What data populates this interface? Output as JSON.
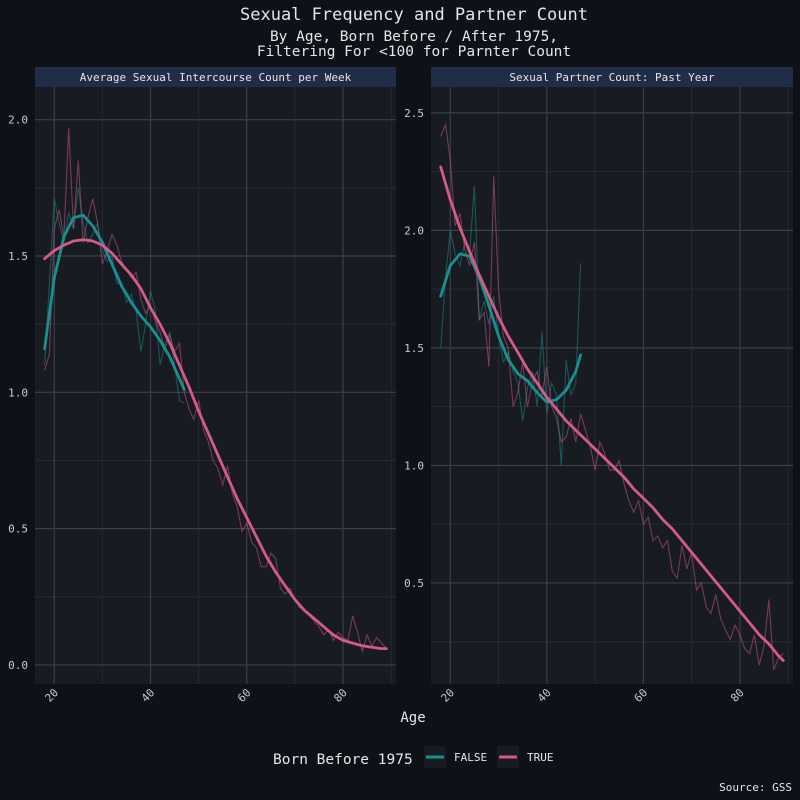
{
  "title": "Sexual Frequency and Partner Count",
  "subtitle_line1": "By Age, Born Before / After 1975,",
  "subtitle_line2": "Filtering For <100 for Parnter Count",
  "xlabel": "Age",
  "source": "Source: GSS",
  "legend": {
    "title": "Born Before 1975",
    "items": [
      "FALSE",
      "TRUE"
    ]
  },
  "colors": {
    "background": "#0e1117",
    "panel": "#181c22",
    "strip": "#1f2d47",
    "grid_major": "#3a3f47",
    "grid_minor": "#252a31",
    "text": "#e6e6e6",
    "axis_text": "#c9c9c9",
    "FALSE": "#1a8f8f",
    "TRUE": "#d45a8a"
  },
  "chart_data": [
    {
      "type": "line",
      "facet": "Average Sexual Intercourse Count per Week",
      "xlim": [
        16,
        91
      ],
      "ylim": [
        -0.07,
        2.12
      ],
      "xticks": [
        20,
        40,
        60,
        80
      ],
      "yticks": [
        0.0,
        0.5,
        1.0,
        1.5,
        2.0
      ],
      "ytick_labels": [
        "0.0",
        "0.5",
        "1.0",
        "1.5",
        "2.0"
      ],
      "raw": [
        {
          "name": "FALSE",
          "x": [
            18,
            19,
            20,
            21,
            22,
            23,
            24,
            25,
            26,
            27,
            28,
            29,
            30,
            31,
            32,
            33,
            34,
            35,
            36,
            37,
            38,
            39,
            40,
            41,
            42,
            43,
            44,
            45,
            46,
            47
          ],
          "y": [
            1.1,
            1.4,
            1.71,
            1.62,
            1.55,
            1.66,
            1.6,
            1.75,
            1.62,
            1.55,
            1.58,
            1.62,
            1.52,
            1.48,
            1.5,
            1.4,
            1.4,
            1.33,
            1.36,
            1.3,
            1.15,
            1.25,
            1.37,
            1.3,
            1.1,
            1.18,
            1.22,
            1.1,
            0.97,
            0.96
          ]
        },
        {
          "name": "TRUE",
          "x": [
            18,
            19,
            20,
            21,
            22,
            23,
            24,
            25,
            26,
            27,
            28,
            29,
            30,
            31,
            32,
            33,
            34,
            35,
            36,
            37,
            38,
            39,
            40,
            41,
            42,
            43,
            44,
            45,
            46,
            47,
            48,
            49,
            50,
            51,
            52,
            53,
            54,
            55,
            56,
            57,
            58,
            59,
            60,
            61,
            62,
            63,
            64,
            65,
            66,
            67,
            68,
            69,
            70,
            71,
            72,
            73,
            74,
            75,
            76,
            77,
            78,
            79,
            80,
            81,
            82,
            83,
            84,
            85,
            86,
            87,
            88,
            89
          ],
          "y": [
            1.08,
            1.14,
            1.6,
            1.67,
            1.57,
            1.97,
            1.6,
            1.85,
            1.55,
            1.64,
            1.71,
            1.62,
            1.47,
            1.52,
            1.58,
            1.54,
            1.48,
            1.45,
            1.42,
            1.44,
            1.34,
            1.29,
            1.32,
            1.26,
            1.22,
            1.16,
            1.21,
            1.15,
            1.18,
            1.0,
            0.94,
            0.9,
            0.97,
            0.86,
            0.82,
            0.75,
            0.72,
            0.66,
            0.73,
            0.63,
            0.58,
            0.49,
            0.52,
            0.45,
            0.43,
            0.36,
            0.36,
            0.41,
            0.39,
            0.28,
            0.26,
            0.28,
            0.24,
            0.21,
            0.2,
            0.18,
            0.16,
            0.14,
            0.11,
            0.13,
            0.09,
            0.12,
            0.1,
            0.09,
            0.18,
            0.12,
            0.05,
            0.11,
            0.07,
            0.1,
            0.08,
            0.06
          ]
        }
      ],
      "smooth": [
        {
          "name": "FALSE",
          "x": [
            18,
            20,
            22,
            24,
            26,
            28,
            30,
            32,
            34,
            36,
            38,
            40,
            42,
            44,
            46,
            47
          ],
          "y": [
            1.16,
            1.42,
            1.57,
            1.64,
            1.65,
            1.61,
            1.55,
            1.47,
            1.39,
            1.33,
            1.28,
            1.24,
            1.19,
            1.13,
            1.05,
            1.01
          ]
        },
        {
          "name": "TRUE",
          "x": [
            18,
            20,
            22,
            24,
            26,
            28,
            30,
            32,
            34,
            36,
            38,
            40,
            42,
            44,
            46,
            48,
            50,
            52,
            54,
            56,
            58,
            60,
            62,
            64,
            66,
            68,
            70,
            72,
            74,
            76,
            78,
            80,
            82,
            84,
            86,
            88,
            89
          ],
          "y": [
            1.49,
            1.52,
            1.54,
            1.555,
            1.56,
            1.555,
            1.54,
            1.51,
            1.47,
            1.43,
            1.38,
            1.31,
            1.25,
            1.18,
            1.1,
            1.02,
            0.93,
            0.85,
            0.77,
            0.69,
            0.61,
            0.54,
            0.47,
            0.4,
            0.34,
            0.29,
            0.24,
            0.2,
            0.17,
            0.14,
            0.11,
            0.09,
            0.08,
            0.07,
            0.065,
            0.06,
            0.06
          ]
        }
      ]
    },
    {
      "type": "line",
      "facet": "Sexual Partner Count: Past Year",
      "xlim": [
        16,
        91
      ],
      "ylim": [
        0.07,
        2.61
      ],
      "xticks": [
        20,
        40,
        60,
        80
      ],
      "yticks": [
        0.5,
        1.0,
        1.5,
        2.0,
        2.5
      ],
      "ytick_labels": [
        "0.5",
        "1.0",
        "1.5",
        "2.0",
        "2.5"
      ],
      "raw": [
        {
          "name": "FALSE",
          "x": [
            18,
            19,
            20,
            21,
            22,
            23,
            24,
            25,
            26,
            27,
            28,
            29,
            30,
            31,
            32,
            33,
            34,
            35,
            36,
            37,
            38,
            39,
            40,
            41,
            42,
            43,
            44,
            45,
            46,
            47
          ],
          "y": [
            1.5,
            1.8,
            2.0,
            1.9,
            1.85,
            1.95,
            1.9,
            2.19,
            1.62,
            1.7,
            1.6,
            1.72,
            1.55,
            1.44,
            1.48,
            1.4,
            1.35,
            1.19,
            1.33,
            1.4,
            1.25,
            1.57,
            1.22,
            1.35,
            1.3,
            1.0,
            1.45,
            1.3,
            1.35,
            1.86
          ]
        },
        {
          "name": "TRUE",
          "x": [
            18,
            19,
            20,
            21,
            22,
            23,
            24,
            25,
            26,
            27,
            28,
            29,
            30,
            31,
            32,
            33,
            34,
            35,
            36,
            37,
            38,
            39,
            40,
            41,
            42,
            43,
            44,
            45,
            46,
            47,
            48,
            49,
            50,
            51,
            52,
            53,
            54,
            55,
            56,
            57,
            58,
            59,
            60,
            61,
            62,
            63,
            64,
            65,
            66,
            67,
            68,
            69,
            70,
            71,
            72,
            73,
            74,
            75,
            76,
            77,
            78,
            79,
            80,
            81,
            82,
            83,
            84,
            85,
            86,
            87,
            88,
            89
          ],
          "y": [
            2.4,
            2.45,
            2.3,
            2.02,
            2.07,
            1.92,
            1.85,
            1.95,
            1.62,
            1.65,
            1.42,
            2.23,
            1.75,
            1.55,
            1.5,
            1.25,
            1.31,
            1.44,
            1.25,
            1.36,
            1.4,
            1.3,
            1.42,
            1.25,
            1.2,
            1.1,
            1.12,
            1.2,
            1.1,
            1.22,
            1.15,
            1.08,
            0.98,
            1.1,
            1.05,
            0.98,
            0.98,
            1.02,
            0.92,
            0.85,
            0.8,
            0.85,
            0.75,
            0.78,
            0.68,
            0.7,
            0.65,
            0.68,
            0.55,
            0.52,
            0.66,
            0.56,
            0.63,
            0.47,
            0.5,
            0.4,
            0.37,
            0.45,
            0.35,
            0.3,
            0.26,
            0.32,
            0.28,
            0.22,
            0.2,
            0.28,
            0.15,
            0.23,
            0.43,
            0.13,
            0.18,
            0.2
          ]
        }
      ],
      "smooth": [
        {
          "name": "FALSE",
          "x": [
            18,
            20,
            22,
            24,
            26,
            28,
            30,
            32,
            34,
            36,
            38,
            40,
            42,
            44,
            46,
            47
          ],
          "y": [
            1.72,
            1.85,
            1.9,
            1.89,
            1.8,
            1.68,
            1.55,
            1.45,
            1.39,
            1.36,
            1.31,
            1.27,
            1.28,
            1.32,
            1.4,
            1.47
          ]
        },
        {
          "name": "TRUE",
          "x": [
            18,
            20,
            22,
            24,
            26,
            28,
            30,
            32,
            34,
            36,
            38,
            40,
            42,
            44,
            46,
            48,
            50,
            52,
            54,
            56,
            58,
            60,
            62,
            64,
            66,
            68,
            70,
            72,
            74,
            76,
            78,
            80,
            82,
            84,
            86,
            88,
            89
          ],
          "y": [
            2.27,
            2.13,
            2.01,
            1.91,
            1.81,
            1.72,
            1.63,
            1.55,
            1.48,
            1.41,
            1.35,
            1.29,
            1.24,
            1.19,
            1.15,
            1.11,
            1.07,
            1.03,
            0.99,
            0.95,
            0.9,
            0.86,
            0.82,
            0.77,
            0.73,
            0.68,
            0.63,
            0.58,
            0.53,
            0.48,
            0.43,
            0.38,
            0.33,
            0.28,
            0.24,
            0.19,
            0.17
          ]
        }
      ]
    }
  ]
}
